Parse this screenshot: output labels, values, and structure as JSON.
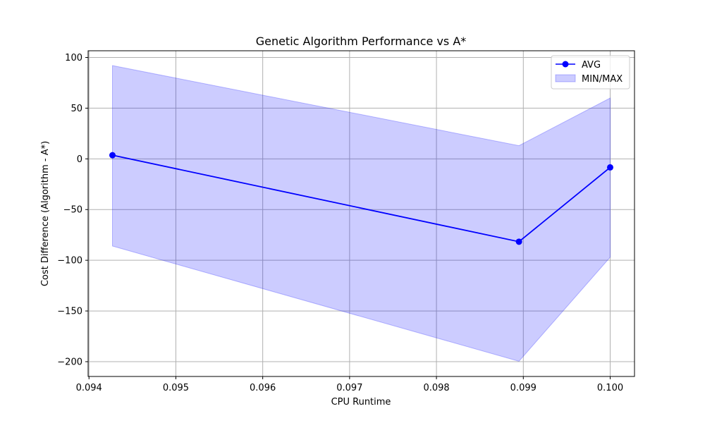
{
  "chart_data": {
    "type": "line",
    "title": "Genetic Algorithm Performance vs A*",
    "xlabel": "CPU Runtime",
    "ylabel": "Cost Difference (Algorithm - A*)",
    "xlim": [
      0.09399,
      0.10028
    ],
    "ylim": [
      -214.6,
      106.6
    ],
    "x_ticks": [
      0.094,
      0.095,
      0.096,
      0.097,
      0.098,
      0.099,
      0.1
    ],
    "x_tick_labels": [
      "0.094",
      "0.095",
      "0.096",
      "0.097",
      "0.098",
      "0.099",
      "0.100"
    ],
    "y_ticks": [
      100,
      50,
      0,
      -50,
      -100,
      -150,
      -200
    ],
    "y_tick_labels": [
      "100",
      "50",
      "0",
      "−50",
      "−100",
      "−150",
      "−200"
    ],
    "grid": true,
    "legend_position": "top-right",
    "series": [
      {
        "name": "AVG",
        "kind": "line-markers",
        "color": "#0000ff",
        "x": [
          0.09427,
          0.09895,
          0.1
        ],
        "y": [
          3.6,
          -81.7,
          -8.4
        ]
      },
      {
        "name": "MIN/MAX",
        "kind": "band",
        "color": "#0000ff",
        "opacity": 0.2,
        "x": [
          0.09427,
          0.09895,
          0.1
        ],
        "y_max": [
          92,
          13,
          60
        ],
        "y_min": [
          -86,
          -199.6,
          -97
        ]
      }
    ]
  }
}
